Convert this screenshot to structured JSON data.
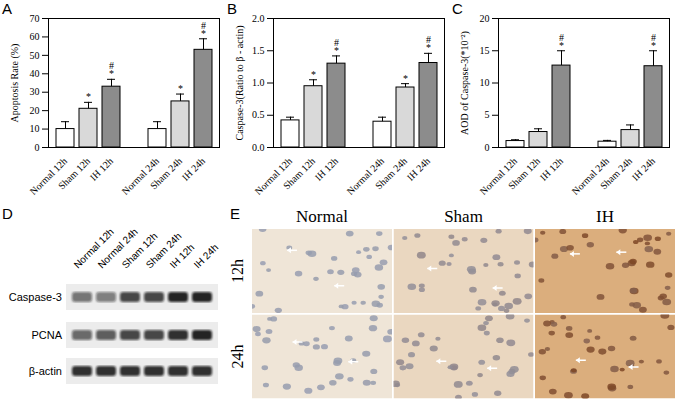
{
  "chart_data": [
    {
      "type": "bar",
      "title": "A",
      "ylabel": "Apoptosis Rate (%)",
      "categories": [
        "Normal 12h",
        "Sham 12h",
        "IH 12h",
        null,
        "Normal 24h",
        "Sham 24h",
        "IH 24h"
      ],
      "values": [
        10,
        21,
        33,
        null,
        10,
        25,
        53
      ],
      "errors": [
        4,
        3.5,
        4,
        null,
        4,
        4,
        6
      ],
      "significance": [
        null,
        [
          "*"
        ],
        [
          "*",
          "#"
        ],
        null,
        null,
        [
          "*"
        ],
        [
          "*",
          "#"
        ]
      ],
      "colors": [
        "#ffffff",
        "#d9d9d9",
        "#8c8c8c",
        null,
        "#ffffff",
        "#d9d9d9",
        "#8c8c8c"
      ],
      "ylim": [
        0,
        70
      ],
      "yticks": [
        0,
        10,
        20,
        30,
        40,
        50,
        60,
        70
      ]
    },
    {
      "type": "bar",
      "title": "B",
      "ylabel": "Caspase-3(Ratio to β - actin)",
      "categories": [
        "Normal 12h",
        "Sham 12h",
        "IH 12h",
        null,
        "Normal 24h",
        "Sham 24h",
        "IH 24h"
      ],
      "values": [
        0.42,
        0.95,
        1.3,
        null,
        0.4,
        0.93,
        1.31
      ],
      "errors": [
        0.05,
        0.1,
        0.12,
        null,
        0.07,
        0.06,
        0.15
      ],
      "significance": [
        null,
        [
          "*"
        ],
        [
          "*",
          "#"
        ],
        null,
        null,
        [
          "*"
        ],
        [
          "*",
          "#"
        ]
      ],
      "colors": [
        "#ffffff",
        "#d9d9d9",
        "#8c8c8c",
        null,
        "#ffffff",
        "#d9d9d9",
        "#8c8c8c"
      ],
      "ylim": [
        0,
        2
      ],
      "yticks": [
        {
          "value": 0,
          "label": "0.0"
        },
        0.5,
        {
          "value": 1,
          "label": "1.0"
        },
        1.5,
        {
          "value": 2,
          "label": "2.0"
        }
      ]
    },
    {
      "type": "bar",
      "title": "C",
      "ylabel": "AOD of Caspase-3(*10⁻²)",
      "categories": [
        "Normal 12h",
        "Sham 12h",
        "IH 12h",
        null,
        "Normal 24h",
        "Sham 24h",
        "IH 24h"
      ],
      "values": [
        1.0,
        2.4,
        12.7,
        null,
        0.9,
        2.7,
        12.6
      ],
      "errors": [
        0.2,
        0.5,
        2.3,
        null,
        0.2,
        0.8,
        2.4
      ],
      "significance": [
        null,
        null,
        [
          "*",
          "#"
        ],
        null,
        null,
        null,
        [
          "*",
          "#"
        ]
      ],
      "colors": [
        "#ffffff",
        "#d9d9d9",
        "#8c8c8c",
        null,
        "#ffffff",
        "#d9d9d9",
        "#8c8c8c"
      ],
      "ylim": [
        0,
        20
      ],
      "yticks": [
        0,
        5,
        10,
        15,
        20
      ]
    }
  ],
  "blot": {
    "title": "D",
    "lanes": [
      "Normal 12h",
      "Normal 24h",
      "Sham 12h",
      "Sham 24h",
      "IH 12h",
      "IH 24h"
    ],
    "rows": [
      {
        "label": "Caspase-3",
        "intensity": [
          0.55,
          0.5,
          0.75,
          0.75,
          0.9,
          0.9
        ]
      },
      {
        "label": "PCNA",
        "intensity": [
          0.6,
          0.65,
          0.75,
          0.75,
          0.85,
          0.9
        ]
      },
      {
        "label": "β-actin",
        "intensity": [
          0.85,
          0.85,
          0.85,
          0.85,
          0.85,
          0.85
        ]
      }
    ]
  },
  "micrographs": {
    "title": "E",
    "columns": [
      "Normal",
      "Sham",
      "IH"
    ],
    "rows": [
      "12h",
      "24h"
    ],
    "stain": [
      0.1,
      0.3,
      0.9
    ]
  }
}
